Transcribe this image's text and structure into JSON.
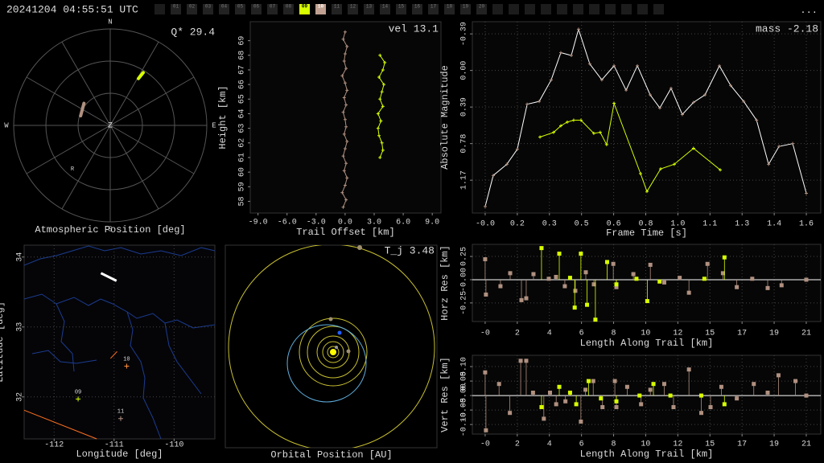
{
  "header": {
    "timestamp": "20241204 04:55:51 UTC",
    "stations": [
      {
        "label": "01"
      },
      {
        "label": "02"
      },
      {
        "label": "03"
      },
      {
        "label": "04"
      },
      {
        "label": "05"
      },
      {
        "label": "06"
      },
      {
        "label": "07"
      },
      {
        "label": "08"
      },
      {
        "label": "09",
        "color": "#d8ff00"
      },
      {
        "label": "10",
        "color": "#c0a090"
      },
      {
        "label": "11"
      },
      {
        "label": "12"
      },
      {
        "label": "13"
      },
      {
        "label": "14"
      },
      {
        "label": "15"
      },
      {
        "label": "16"
      },
      {
        "label": "17"
      },
      {
        "label": "18"
      },
      {
        "label": "19"
      },
      {
        "label": "20"
      }
    ],
    "menu": "..."
  },
  "chart_data": [
    {
      "type": "polar",
      "title": "Atmospheric Position [deg]",
      "annotation": "Q* 29.4",
      "direction_labels": [
        "N",
        "E",
        "S",
        "W"
      ],
      "center_label": "Z",
      "marker_label": "R",
      "rlim": [
        0,
        90
      ],
      "series": [
        {
          "color": "#b09080",
          "azimuth": [
            310,
            288
          ],
          "zenith": [
            32,
            29
          ]
        },
        {
          "color": "#d8ff00",
          "azimuth": [
            31,
            32
          ],
          "zenith": [
            51,
            58
          ]
        }
      ]
    },
    {
      "type": "line",
      "annotation": "vel 13.1",
      "x_label": "Trail Offset [km]",
      "y_label": "Height [km]",
      "xlim": [
        -9.8,
        9.9
      ],
      "ylim": [
        57.2,
        70.3
      ],
      "xticks": [
        {
          "value": -9,
          "label": "-9.0"
        },
        {
          "value": -6,
          "label": "-6.0"
        },
        {
          "value": -3,
          "label": "-3.0"
        },
        {
          "value": 0,
          "label": "0.0"
        },
        {
          "value": 3,
          "label": "3.0"
        },
        {
          "value": 6,
          "label": "6.0"
        },
        {
          "value": 9,
          "label": "9.0"
        }
      ],
      "yticks": [
        58,
        59,
        60,
        61,
        62,
        63,
        64,
        65,
        66,
        67,
        68,
        69
      ],
      "grid": false,
      "series": [
        {
          "color": "#b09080",
          "marker_color": "#b09080",
          "x": [
            -0.2,
            0.1,
            -0.3,
            0.0,
            0.2,
            -0.1,
            0.1,
            -0.2,
            0.0,
            0.2,
            -0.1,
            0.1,
            0.0,
            -0.2,
            0.1,
            -0.1,
            0.2,
            0.0,
            -0.3,
            0.1,
            -0.1,
            0.0,
            0.2,
            -0.2,
            0.0
          ],
          "values": [
            57.6,
            58.1,
            58.6,
            59.1,
            59.6,
            60.1,
            60.6,
            61.1,
            61.6,
            62.1,
            62.6,
            63.1,
            63.6,
            64.1,
            64.6,
            65.1,
            65.6,
            66.1,
            66.6,
            67.1,
            67.6,
            68.1,
            68.6,
            69.1,
            69.6
          ]
        },
        {
          "color": "#d8ff00",
          "marker_color": "#d8ff00",
          "x": [
            3.6,
            3.9,
            3.8,
            3.5,
            3.4,
            3.7,
            3.4,
            3.9,
            3.6,
            3.8,
            4.0,
            3.5,
            3.9,
            4.1,
            3.6
          ],
          "values": [
            61.0,
            61.5,
            62.0,
            62.5,
            63.0,
            63.5,
            64.0,
            64.5,
            65.0,
            65.5,
            66.0,
            66.5,
            67.0,
            67.5,
            68.0
          ]
        }
      ]
    },
    {
      "type": "line",
      "annotation": "mass -2.18",
      "x_label": "Frame Time [s]",
      "y_label": "Absolute Magnitude",
      "xlim": [
        -0.064,
        1.672
      ],
      "ylim": [
        1.52,
        -0.52
      ],
      "xticks": [
        {
          "value": 0,
          "label": "-0.0"
        },
        {
          "value": 0.16,
          "label": "0.2"
        },
        {
          "value": 0.32,
          "label": "0.3"
        },
        {
          "value": 0.48,
          "label": "0.5"
        },
        {
          "value": 0.64,
          "label": "0.6"
        },
        {
          "value": 0.8,
          "label": "0.8"
        },
        {
          "value": 0.96,
          "label": "1.0"
        },
        {
          "value": 1.12,
          "label": "1.1"
        },
        {
          "value": 1.28,
          "label": "1.3"
        },
        {
          "value": 1.44,
          "label": "1.4"
        },
        {
          "value": 1.6,
          "label": "1.6"
        }
      ],
      "yticks": [
        -0.39,
        {
          "value": 0,
          "label": "0.00"
        },
        0.39,
        0.78,
        1.17
      ],
      "grid": true,
      "series": [
        {
          "color": "#ffffff",
          "marker_color": "#b09080",
          "x": [
            0.0,
            0.04,
            0.108,
            0.16,
            0.209,
            0.269,
            0.329,
            0.377,
            0.429,
            0.465,
            0.521,
            0.581,
            0.642,
            0.702,
            0.758,
            0.822,
            0.87,
            0.926,
            0.982,
            1.038,
            1.095,
            1.167,
            1.223,
            1.288,
            1.352,
            1.412,
            1.464,
            1.532,
            1.6
          ],
          "values": [
            1.45,
            1.12,
            1.0,
            0.84,
            0.36,
            0.33,
            0.1,
            -0.19,
            -0.16,
            -0.44,
            -0.07,
            0.1,
            -0.05,
            0.21,
            -0.05,
            0.26,
            0.4,
            0.19,
            0.47,
            0.34,
            0.26,
            -0.05,
            0.16,
            0.33,
            0.53,
            1.0,
            0.81,
            0.78,
            1.31
          ]
        },
        {
          "color": "#d8ff00",
          "marker_color": "#d8ff00",
          "x": [
            0.273,
            0.341,
            0.377,
            0.409,
            0.441,
            0.477,
            0.541,
            0.573,
            0.605,
            0.642,
            0.774,
            0.806,
            0.874,
            0.942,
            1.038,
            1.171
          ],
          "values": [
            0.71,
            0.66,
            0.59,
            0.55,
            0.53,
            0.53,
            0.67,
            0.66,
            0.79,
            0.35,
            1.1,
            1.29,
            1.05,
            1.0,
            0.83,
            1.06
          ]
        }
      ]
    },
    {
      "type": "map",
      "x_label": "Longitude [deg]",
      "y_label": "Latitude [deg]",
      "xlim": [
        -112.5,
        -109.32
      ],
      "ylim": [
        31.4,
        34.17
      ],
      "xticks": [
        -112,
        -111,
        -110
      ],
      "yticks": [
        32,
        33,
        34
      ],
      "grid": true,
      "stations": {
        "labels": [
          "10",
          "09",
          "11"
        ],
        "x": [
          -110.79,
          -111.6,
          -110.89
        ],
        "values": [
          32.44,
          31.97,
          31.69
        ],
        "colors": [
          "#ff9040",
          "#d8ff00",
          "#b09080"
        ]
      },
      "series": [
        {
          "color": "#ffffff",
          "x": [
            -111.22,
            -110.96
          ],
          "values": [
            33.77,
            33.66
          ]
        },
        {
          "color": "#ff7020",
          "x": [
            -111.06,
            -110.95
          ],
          "values": [
            32.55,
            32.65
          ]
        },
        {
          "color": "#ff7020",
          "x": [
            -112.5,
            -111.29
          ],
          "values": [
            31.81,
            31.4
          ]
        }
      ]
    },
    {
      "type": "orbit",
      "annotation": "T_j 3.48",
      "x_label": "Orbital Position [AU]"
    },
    {
      "type": "stem",
      "x_label": "Length Along Trail [km]",
      "y_label": "Horz Res [km]",
      "xlim": [
        -0.83,
        21.74
      ],
      "ylim": [
        -0.45,
        0.38
      ],
      "xticks": [
        {
          "value": 0,
          "label": "-0"
        },
        {
          "value": 2.08,
          "label": "2"
        },
        {
          "value": 4.16,
          "label": "4"
        },
        {
          "value": 6.24,
          "label": "6"
        },
        {
          "value": 8.32,
          "label": "8"
        },
        {
          "value": 10.4,
          "label": "10"
        },
        {
          "value": 12.48,
          "label": "12"
        },
        {
          "value": 14.56,
          "label": "15"
        },
        {
          "value": 16.64,
          "label": "17"
        },
        {
          "value": 18.72,
          "label": "19"
        },
        {
          "value": 20.8,
          "label": "21"
        }
      ],
      "yticks": [
        -0.25,
        {
          "value": 0,
          "label": "-0.00"
        },
        0.25
      ],
      "grid": true,
      "series": [
        {
          "color": "#b09080",
          "x": [
            0.0,
            0.05,
            0.99,
            1.62,
            2.35,
            2.66,
            3.13,
            4.12,
            4.59,
            5.16,
            5.84,
            6.52,
            7.04,
            8.3,
            8.5,
            9.6,
            10.7,
            11.6,
            12.6,
            13.2,
            14.4,
            15.4,
            16.3,
            17.3,
            18.3,
            19.2,
            20.8
          ],
          "values": [
            0.22,
            -0.16,
            -0.07,
            0.07,
            -0.22,
            -0.2,
            0.06,
            0.01,
            0.03,
            -0.07,
            -0.12,
            0.08,
            -0.05,
            0.17,
            -0.08,
            0.06,
            0.16,
            -0.03,
            0.02,
            -0.14,
            0.17,
            0.07,
            -0.08,
            0.01,
            -0.09,
            -0.06,
            0.0
          ]
        },
        {
          "color": "#d8ff00",
          "x": [
            3.65,
            4.8,
            5.5,
            5.8,
            6.2,
            6.6,
            7.14,
            7.9,
            8.5,
            9.8,
            10.5,
            11.3,
            14.2,
            15.5
          ],
          "values": [
            0.34,
            0.28,
            0.02,
            -0.3,
            0.28,
            -0.27,
            -0.43,
            0.19,
            -0.05,
            0.01,
            -0.23,
            -0.02,
            0.01,
            0.24
          ]
        }
      ]
    },
    {
      "type": "stem",
      "x_label": "Length Along Trail [km]",
      "y_label": "Vert Res [km]",
      "xlim": [
        -0.83,
        21.74
      ],
      "ylim": [
        -0.133,
        0.139
      ],
      "xticks": [
        {
          "value": 0,
          "label": "-0"
        },
        {
          "value": 2.08,
          "label": "2"
        },
        {
          "value": 4.16,
          "label": "4"
        },
        {
          "value": 6.24,
          "label": "6"
        },
        {
          "value": 8.32,
          "label": "8"
        },
        {
          "value": 10.4,
          "label": "10"
        },
        {
          "value": 12.48,
          "label": "12"
        },
        {
          "value": 14.56,
          "label": "15"
        },
        {
          "value": 16.64,
          "label": "17"
        },
        {
          "value": 18.72,
          "label": "19"
        },
        {
          "value": 20.8,
          "label": "21"
        }
      ],
      "yticks": [
        {
          "value": -0.1,
          "label": "-0.10"
        },
        -0.05,
        {
          "value": 0,
          "label": "-0.00"
        },
        0.05,
        {
          "value": 0.1,
          "label": "0.10"
        }
      ],
      "grid": true,
      "series": [
        {
          "color": "#b09080",
          "x": [
            0.0,
            0.05,
            0.9,
            1.6,
            2.3,
            2.66,
            3.1,
            3.8,
            4.2,
            4.6,
            5.2,
            6.2,
            6.5,
            7.0,
            7.6,
            8.4,
            8.5,
            9.2,
            10.1,
            10.7,
            11.6,
            12.2,
            13.2,
            14.0,
            14.6,
            15.3,
            16.3,
            17.4,
            18.3,
            19.0,
            20.1,
            20.8
          ],
          "values": [
            0.08,
            -0.12,
            0.04,
            -0.06,
            0.12,
            0.12,
            0.01,
            -0.08,
            0.01,
            -0.03,
            -0.02,
            -0.09,
            0.02,
            0.05,
            -0.04,
            0.05,
            -0.04,
            0.03,
            -0.03,
            0.02,
            0.04,
            -0.04,
            0.09,
            -0.06,
            -0.04,
            0.03,
            -0.01,
            0.04,
            0.01,
            0.07,
            0.05,
            0.0
          ]
        },
        {
          "color": "#d8ff00",
          "x": [
            3.65,
            4.8,
            5.5,
            5.9,
            6.7,
            7.5,
            8.5,
            10.0,
            10.9,
            12.0,
            14.0,
            15.5
          ],
          "values": [
            -0.04,
            0.03,
            0.01,
            -0.03,
            0.05,
            -0.01,
            -0.02,
            0.0,
            0.04,
            0.0,
            0.0,
            -0.03
          ]
        }
      ]
    }
  ]
}
